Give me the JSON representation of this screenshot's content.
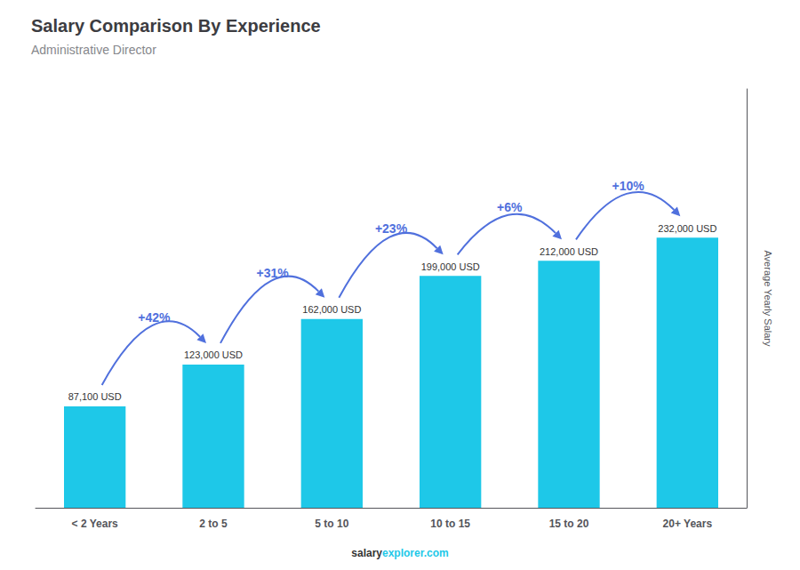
{
  "chart_data": {
    "type": "bar",
    "title": "Salary Comparison By Experience",
    "subtitle": "Administrative Director",
    "ylabel": "Average Yearly Salary",
    "categories": [
      "< 2 Years",
      "2 to 5",
      "5 to 10",
      "10 to 15",
      "15 to 20",
      "20+ Years"
    ],
    "values": [
      87100,
      123000,
      162000,
      199000,
      212000,
      232000
    ],
    "value_labels": [
      "87,100 USD",
      "123,000 USD",
      "162,000 USD",
      "199,000 USD",
      "212,000 USD",
      "232,000 USD"
    ],
    "data_labels": true,
    "annotations": [
      "+42%",
      "+31%",
      "+23%",
      "+6%",
      "+10%"
    ],
    "footer": [
      "salary",
      "explorer.com"
    ],
    "color": "#1ec8e8",
    "ylim": [
      0,
      359600
    ],
    "tick_labels": "x",
    "grid": false
  }
}
